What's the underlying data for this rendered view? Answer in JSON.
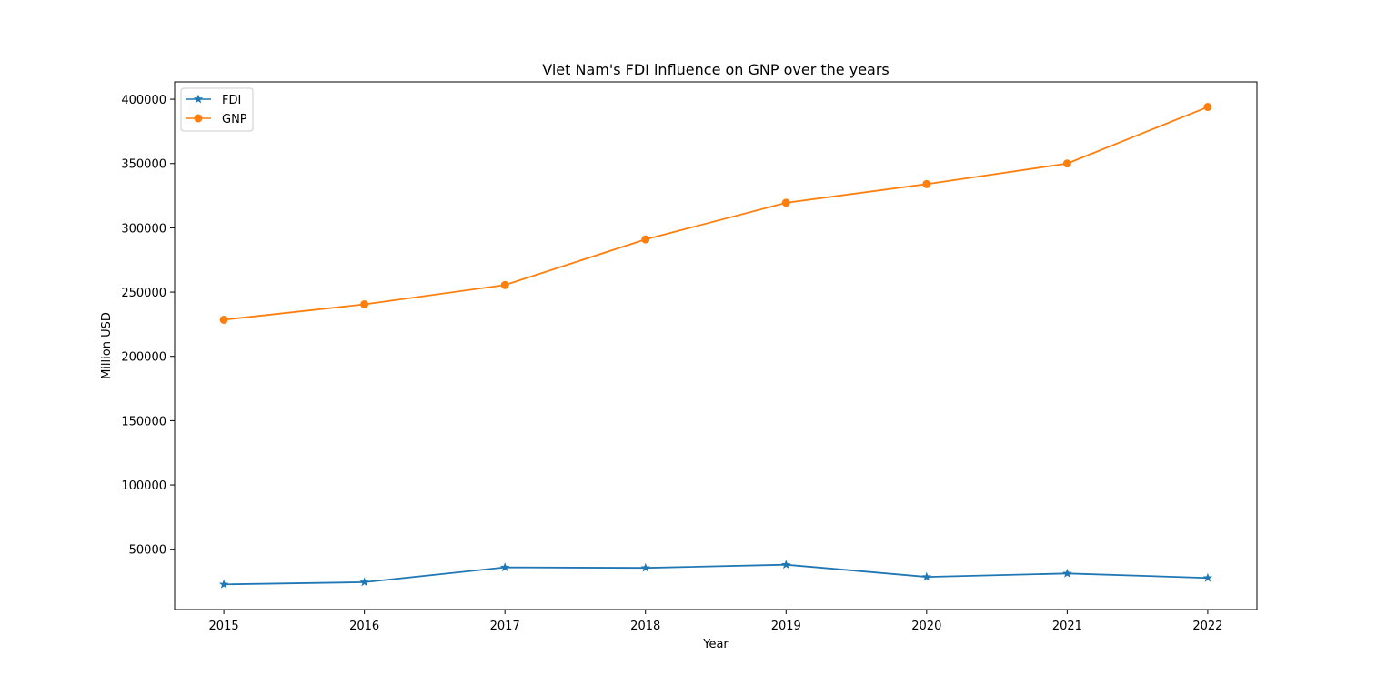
{
  "chart_data": {
    "type": "line",
    "title": "Viet Nam's FDI influence on GNP over the years",
    "xlabel": "Year",
    "ylabel": "Million USD",
    "x": [
      2015,
      2016,
      2017,
      2018,
      2019,
      2020,
      2021,
      2022
    ],
    "series": [
      {
        "name": "FDI",
        "color": "#1f77b4",
        "marker": "star",
        "values": [
          22700,
          24400,
          35900,
          35500,
          38000,
          28500,
          31200,
          27700
        ]
      },
      {
        "name": "GNP",
        "color": "#ff7f0e",
        "marker": "circle",
        "values": [
          228500,
          240500,
          255500,
          291000,
          319500,
          334000,
          350000,
          394000
        ]
      }
    ],
    "yticks": [
      "50000",
      "100000",
      "150000",
      "200000",
      "250000",
      "300000",
      "350000",
      "400000"
    ],
    "xticks": [
      "2015",
      "2016",
      "2017",
      "2018",
      "2019",
      "2020",
      "2021",
      "2022"
    ],
    "xlim": [
      2014.65,
      2022.35
    ],
    "ylim": [
      3100,
      413500
    ],
    "grid": false,
    "legend_position": "top-left"
  }
}
